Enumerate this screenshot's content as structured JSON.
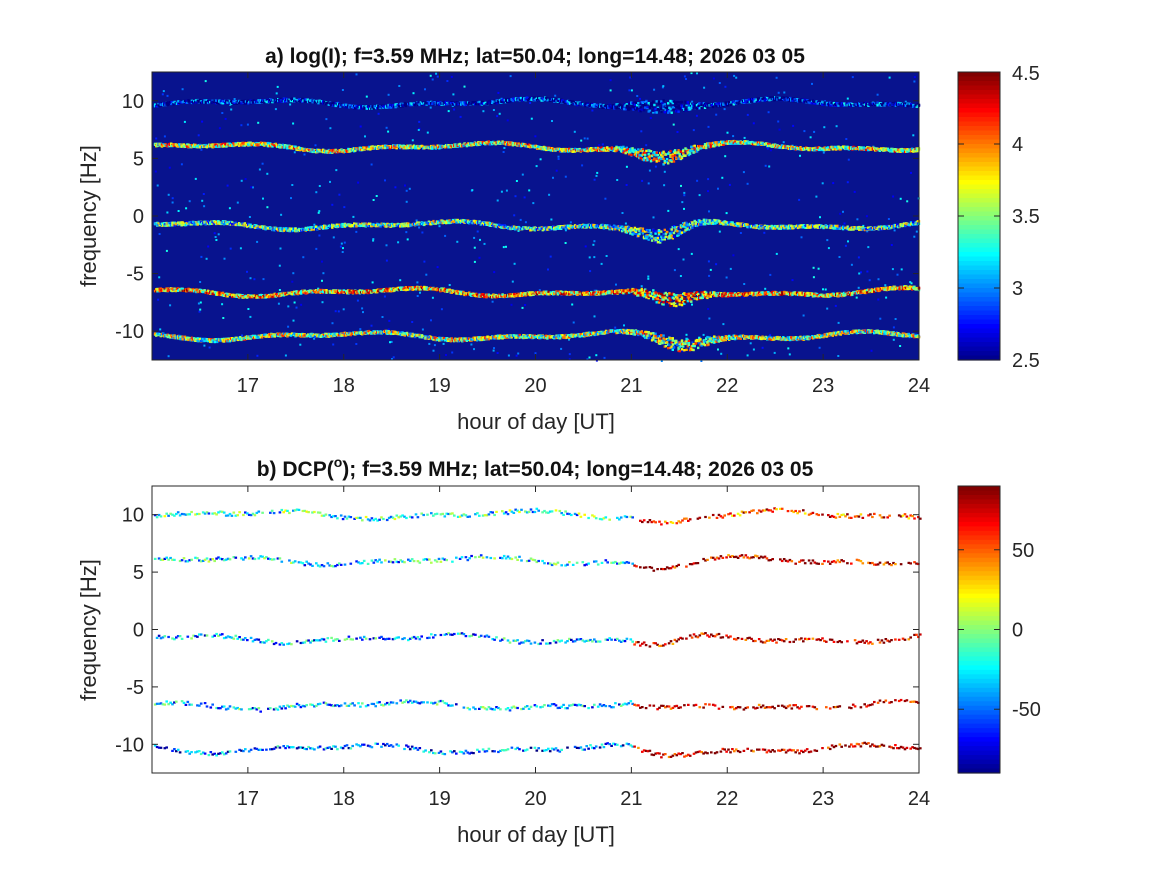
{
  "chart_data": [
    {
      "type": "heatmap",
      "title": "a) log(I); f=3.59 MHz;  lat=50.04; long=14.48; 2026 03 05",
      "xlabel": "hour of day [UT]",
      "ylabel": "frequency [Hz]",
      "xlim": [
        16,
        24
      ],
      "ylim": [
        -12.5,
        12.5
      ],
      "x_ticks": [
        17,
        18,
        19,
        20,
        21,
        22,
        23,
        24
      ],
      "y_ticks": [
        10,
        5,
        0,
        -5,
        -10
      ],
      "colorbar": {
        "min": 2.5,
        "max": 4.5,
        "ticks": [
          "4.5",
          "4",
          "3.5",
          "3",
          "2.5"
        ],
        "colormap": "jet"
      },
      "background_color": "#08138e",
      "series": [
        {
          "center_hz": 9.8,
          "peak_level": 3.3,
          "dip_hour": 21.3,
          "dip_depth_hz": 0.2
        },
        {
          "center_hz": 6.0,
          "peak_level": 4.3,
          "dip_hour": 21.3,
          "dip_depth_hz": 0.8
        },
        {
          "center_hz": -0.8,
          "peak_level": 4.0,
          "dip_hour": 21.3,
          "dip_depth_hz": 1.0
        },
        {
          "center_hz": -6.6,
          "peak_level": 4.5,
          "dip_hour": 21.4,
          "dip_depth_hz": 1.0
        },
        {
          "center_hz": -10.4,
          "peak_level": 4.2,
          "dip_hour": 21.5,
          "dip_depth_hz": 0.6
        }
      ]
    },
    {
      "type": "heatmap",
      "title": "b) DCP(°); f=3.59 MHz;  lat=50.04; long=14.48; 2026 03 05",
      "title_main": "b) DCP(",
      "title_sup": "o",
      "title_rest": "); f=3.59 MHz;  lat=50.04; long=14.48; 2026 03 05",
      "xlabel": "hour of day [UT]",
      "ylabel": "frequency [Hz]",
      "xlim": [
        16,
        24
      ],
      "ylim": [
        -12.5,
        12.5
      ],
      "x_ticks": [
        17,
        18,
        19,
        20,
        21,
        22,
        23,
        24
      ],
      "y_ticks": [
        10,
        5,
        0,
        -5,
        -10
      ],
      "colorbar": {
        "min": -90,
        "max": 90,
        "ticks": [
          "50",
          "0",
          "-50"
        ],
        "colormap": "jet"
      },
      "background_color": "#ffffff",
      "series": [
        {
          "center_hz": 10.0,
          "dcp_before_21h": -20,
          "dcp_after_21h": 60
        },
        {
          "center_hz": 6.0,
          "dcp_before_21h": -30,
          "dcp_after_21h": 80
        },
        {
          "center_hz": -0.8,
          "dcp_before_21h": -40,
          "dcp_after_21h": 80
        },
        {
          "center_hz": -6.6,
          "dcp_before_21h": -35,
          "dcp_after_21h": 85
        },
        {
          "center_hz": -10.4,
          "dcp_before_21h": -50,
          "dcp_after_21h": 85
        }
      ]
    }
  ]
}
